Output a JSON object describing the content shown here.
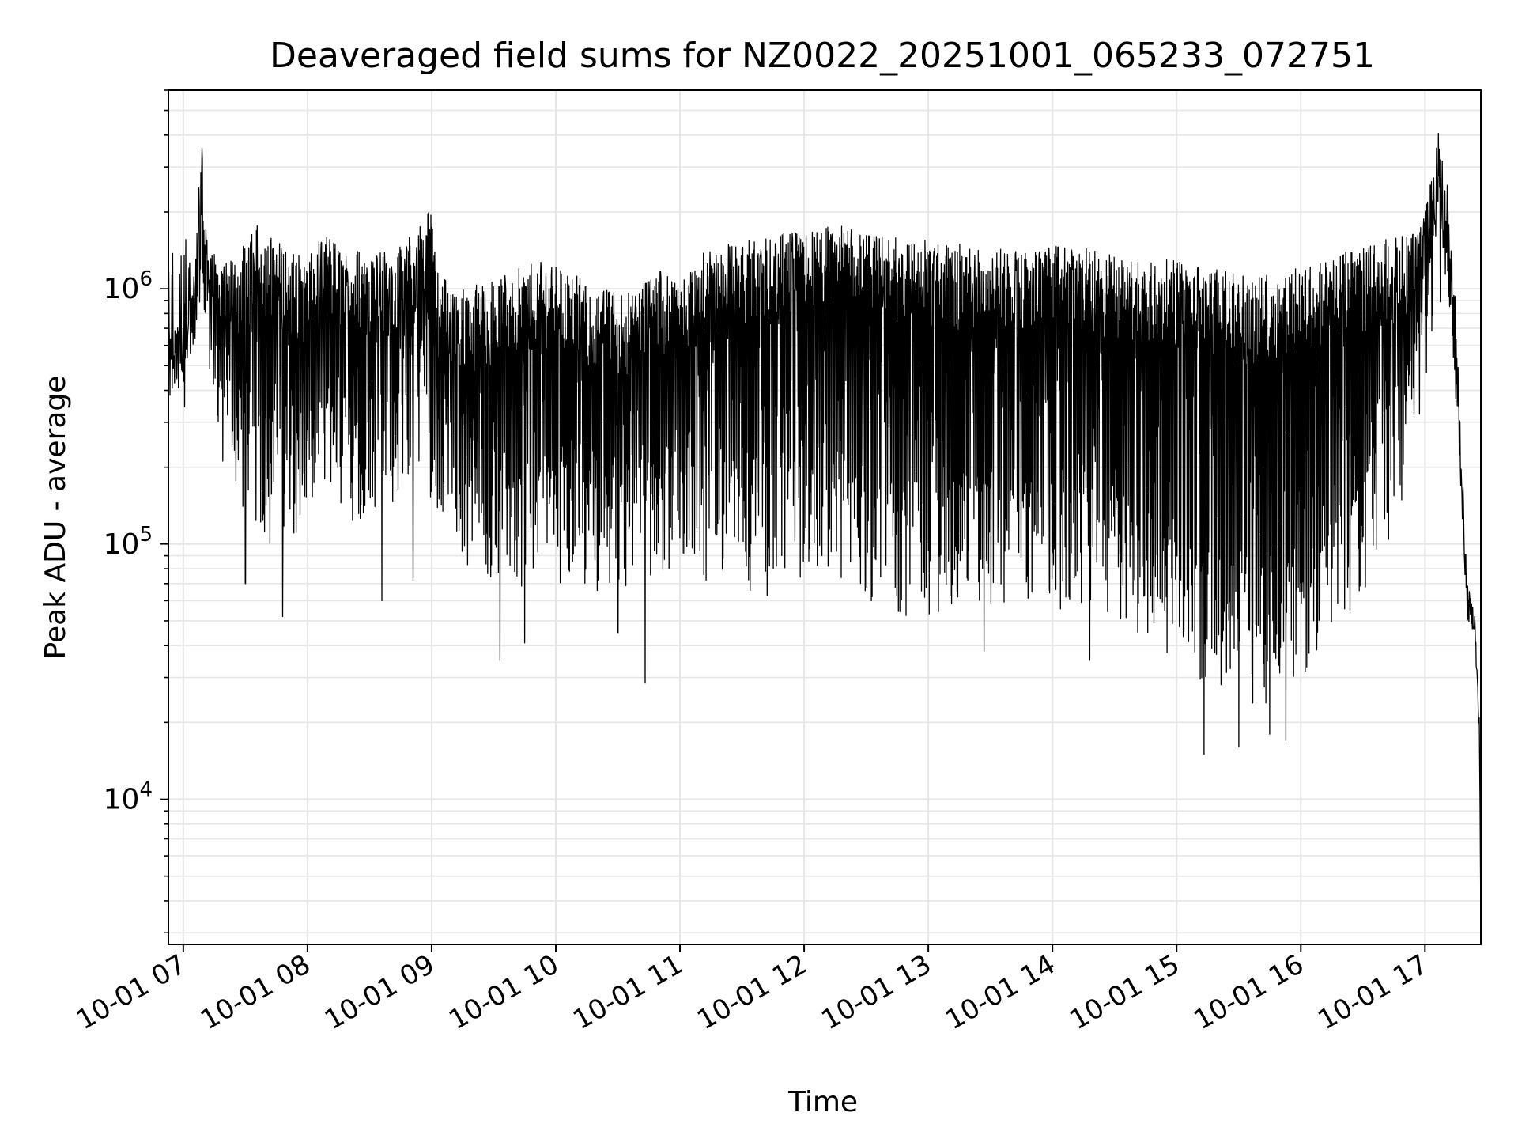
{
  "chart_data": {
    "type": "line",
    "title": "Deaveraged field sums for NZ0022_20251001_065233_072751",
    "xlabel": "Time",
    "ylabel": "Peak ADU - average",
    "yscale": "log",
    "ylim": [
      2700,
      6000000
    ],
    "xlim_hours": [
      6.88,
      17.45
    ],
    "grid": true,
    "grid_color": "#e6e6e6",
    "line_color": "#000000",
    "x_ticks": [
      {
        "hour": 7,
        "label": "10-01 07"
      },
      {
        "hour": 8,
        "label": "10-01 08"
      },
      {
        "hour": 9,
        "label": "10-01 09"
      },
      {
        "hour": 10,
        "label": "10-01 10"
      },
      {
        "hour": 11,
        "label": "10-01 11"
      },
      {
        "hour": 12,
        "label": "10-01 12"
      },
      {
        "hour": 13,
        "label": "10-01 13"
      },
      {
        "hour": 14,
        "label": "10-01 14"
      },
      {
        "hour": 15,
        "label": "10-01 15"
      },
      {
        "hour": 16,
        "label": "10-01 16"
      },
      {
        "hour": 17,
        "label": "10-01 17"
      }
    ],
    "y_ticks": [
      {
        "value": 10000,
        "base": "10",
        "exp": "4"
      },
      {
        "value": 100000,
        "base": "10",
        "exp": "5"
      },
      {
        "value": 1000000,
        "base": "10",
        "exp": "6"
      }
    ],
    "series": [
      {
        "name": "Peak ADU - average",
        "upper_envelope": [
          [
            6.88,
            700000
          ],
          [
            7.0,
            720000
          ],
          [
            7.08,
            1100000
          ],
          [
            7.12,
            2200000
          ],
          [
            7.15,
            4300000
          ],
          [
            7.18,
            1800000
          ],
          [
            7.3,
            1200000
          ],
          [
            7.5,
            1500000
          ],
          [
            7.6,
            1800000
          ],
          [
            7.8,
            1500000
          ],
          [
            8.0,
            1300000
          ],
          [
            8.15,
            1700000
          ],
          [
            8.3,
            1400000
          ],
          [
            8.5,
            1500000
          ],
          [
            8.7,
            1400000
          ],
          [
            8.9,
            1800000
          ],
          [
            8.98,
            2300000
          ],
          [
            9.05,
            1200000
          ],
          [
            9.2,
            1000000
          ],
          [
            9.5,
            1100000
          ],
          [
            9.7,
            1200000
          ],
          [
            9.9,
            1300000
          ],
          [
            10.1,
            1200000
          ],
          [
            10.3,
            1000000
          ],
          [
            10.6,
            1000000
          ],
          [
            10.8,
            1200000
          ],
          [
            11.0,
            1100000
          ],
          [
            11.2,
            1400000
          ],
          [
            11.4,
            1500000
          ],
          [
            11.7,
            1600000
          ],
          [
            12.0,
            1700000
          ],
          [
            12.3,
            1800000
          ],
          [
            12.6,
            1600000
          ],
          [
            12.9,
            1600000
          ],
          [
            13.2,
            1500000
          ],
          [
            13.5,
            1500000
          ],
          [
            13.8,
            1400000
          ],
          [
            14.1,
            1500000
          ],
          [
            14.4,
            1400000
          ],
          [
            14.7,
            1300000
          ],
          [
            15.0,
            1300000
          ],
          [
            15.3,
            1200000
          ],
          [
            15.6,
            1100000
          ],
          [
            15.9,
            1200000
          ],
          [
            16.2,
            1300000
          ],
          [
            16.5,
            1500000
          ],
          [
            16.8,
            1600000
          ],
          [
            17.0,
            2000000
          ],
          [
            17.08,
            3500000
          ],
          [
            17.12,
            4500000
          ],
          [
            17.18,
            2000000
          ],
          [
            17.25,
            900000
          ],
          [
            17.3,
            200000
          ],
          [
            17.34,
            70000
          ],
          [
            17.4,
            55000
          ],
          [
            17.44,
            20000
          ],
          [
            17.45,
            3300
          ]
        ],
        "lower_envelope": [
          [
            6.88,
            450000
          ],
          [
            7.0,
            500000
          ],
          [
            7.1,
            600000
          ],
          [
            7.2,
            400000
          ],
          [
            7.3,
            200000
          ],
          [
            7.5,
            120000
          ],
          [
            7.7,
            90000
          ],
          [
            7.9,
            110000
          ],
          [
            8.1,
            100000
          ],
          [
            8.3,
            110000
          ],
          [
            8.5,
            130000
          ],
          [
            8.7,
            140000
          ],
          [
            8.9,
            200000
          ],
          [
            9.1,
            110000
          ],
          [
            9.3,
            80000
          ],
          [
            9.5,
            70000
          ],
          [
            9.7,
            60000
          ],
          [
            9.9,
            70000
          ],
          [
            10.1,
            70000
          ],
          [
            10.3,
            65000
          ],
          [
            10.5,
            65000
          ],
          [
            10.7,
            70000
          ],
          [
            10.9,
            75000
          ],
          [
            11.1,
            75000
          ],
          [
            11.3,
            70000
          ],
          [
            11.5,
            65000
          ],
          [
            11.7,
            62000
          ],
          [
            11.9,
            65000
          ],
          [
            12.1,
            75000
          ],
          [
            12.3,
            70000
          ],
          [
            12.5,
            60000
          ],
          [
            12.7,
            55000
          ],
          [
            12.9,
            50000
          ],
          [
            13.1,
            52000
          ],
          [
            13.3,
            55000
          ],
          [
            13.5,
            50000
          ],
          [
            13.7,
            50000
          ],
          [
            13.9,
            55000
          ],
          [
            14.1,
            55000
          ],
          [
            14.3,
            50000
          ],
          [
            14.5,
            45000
          ],
          [
            14.7,
            45000
          ],
          [
            14.9,
            38000
          ],
          [
            15.1,
            32000
          ],
          [
            15.3,
            26000
          ],
          [
            15.5,
            24000
          ],
          [
            15.7,
            23000
          ],
          [
            15.9,
            25000
          ],
          [
            16.1,
            30000
          ],
          [
            16.3,
            40000
          ],
          [
            16.5,
            60000
          ],
          [
            16.7,
            100000
          ],
          [
            16.9,
            200000
          ],
          [
            17.0,
            400000
          ],
          [
            17.1,
            900000
          ],
          [
            17.2,
            700000
          ],
          [
            17.28,
            200000
          ],
          [
            17.34,
            50000
          ],
          [
            17.4,
            45000
          ],
          [
            17.44,
            15000
          ],
          [
            17.45,
            3300
          ]
        ],
        "notable_dips": [
          [
            7.5,
            70000
          ],
          [
            7.8,
            52000
          ],
          [
            8.6,
            60000
          ],
          [
            8.85,
            72000
          ],
          [
            9.55,
            35000
          ],
          [
            9.75,
            41000
          ],
          [
            10.5,
            45000
          ],
          [
            10.72,
            28500
          ],
          [
            13.45,
            38000
          ],
          [
            14.3,
            35000
          ],
          [
            15.22,
            15000
          ],
          [
            15.5,
            16000
          ],
          [
            15.75,
            18000
          ],
          [
            15.88,
            17000
          ]
        ]
      }
    ]
  }
}
